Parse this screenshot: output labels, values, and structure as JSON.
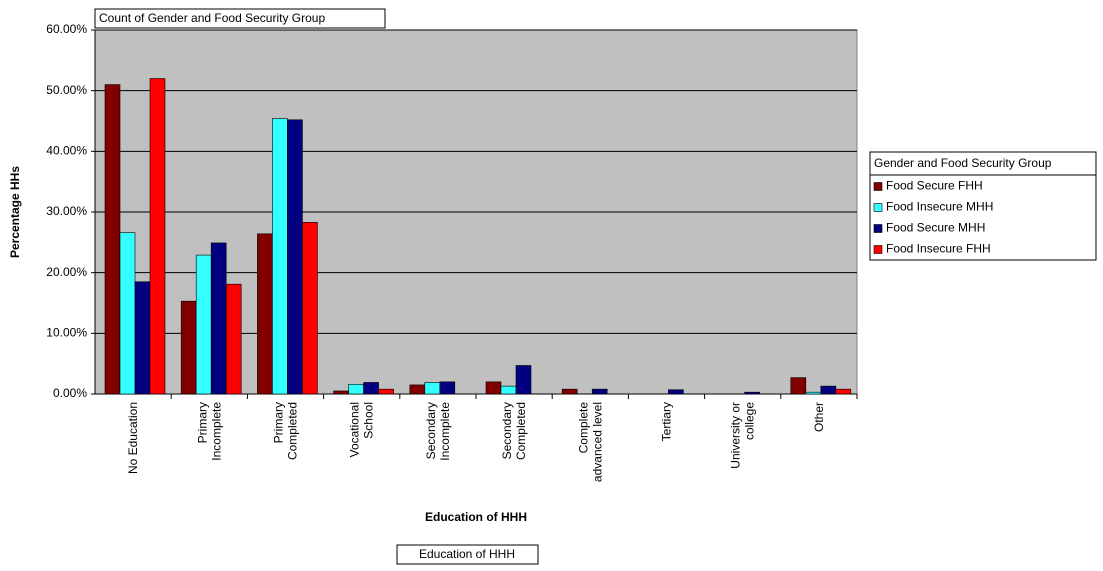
{
  "chart_data": {
    "type": "bar",
    "title": "Count of Gender and Food Security Group",
    "ylabel": "Percentage HHs",
    "xlabel": "Education of HHH",
    "x_field_button": "Education of HHH",
    "legend_title": "Gender and Food Security Group",
    "legend_position": "right",
    "grid": true,
    "plot_background": "#c0c0c0",
    "categories": [
      "No Education",
      "Primary\nIncomplete",
      "Primary\nCompleted",
      "Vocational\nSchool",
      "Secondary\nIncomplete",
      "Secondary\nCompleted",
      "Complete\nadvanced level",
      "Tertiary",
      "University or\ncollege",
      "Other"
    ],
    "series": [
      {
        "name": "Food Secure FHH",
        "color": "#800000",
        "values": [
          51.0,
          15.3,
          26.4,
          0.5,
          1.5,
          2.0,
          0.8,
          0,
          0,
          2.7
        ]
      },
      {
        "name": "Food Insecure MHH",
        "color": "#33ffff",
        "values": [
          26.6,
          22.9,
          45.4,
          1.6,
          1.9,
          1.3,
          0,
          0,
          0,
          0.3
        ]
      },
      {
        "name": "Food Secure MHH",
        "color": "#000080",
        "values": [
          18.5,
          24.9,
          45.2,
          1.9,
          2.0,
          4.7,
          0.8,
          0.7,
          0.3,
          1.3
        ]
      },
      {
        "name": "Food Insecure FHH",
        "color": "#ff0000",
        "values": [
          52.0,
          18.1,
          28.3,
          0.8,
          0,
          0,
          0,
          0,
          0,
          0.8
        ]
      }
    ],
    "ylim": [
      0,
      60
    ],
    "yticks": [
      {
        "value": 0,
        "label": "0.00%"
      },
      {
        "value": 10,
        "label": "10.00%"
      },
      {
        "value": 20,
        "label": "20.00%"
      },
      {
        "value": 30,
        "label": "30.00%"
      },
      {
        "value": 40,
        "label": "40.00%"
      },
      {
        "value": 50,
        "label": "50.00%"
      },
      {
        "value": 60,
        "label": "60.00%"
      }
    ]
  }
}
